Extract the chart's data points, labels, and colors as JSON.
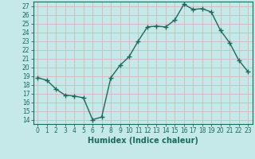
{
  "x": [
    0,
    1,
    2,
    3,
    4,
    5,
    6,
    7,
    8,
    9,
    10,
    11,
    12,
    13,
    14,
    15,
    16,
    17,
    18,
    19,
    20,
    21,
    22,
    23
  ],
  "y": [
    18.8,
    18.5,
    17.5,
    16.8,
    16.7,
    16.5,
    14.0,
    14.3,
    18.8,
    20.2,
    21.2,
    23.0,
    24.6,
    24.7,
    24.6,
    25.4,
    27.2,
    26.6,
    26.7,
    26.3,
    24.2,
    22.8,
    20.8,
    19.5
  ],
  "line_color": "#1a6b5a",
  "marker": "+",
  "marker_size": 4,
  "marker_edge_width": 1.0,
  "bg_color": "#c5e8e8",
  "grid_color": "#d4b8b8",
  "xlabel": "Humidex (Indice chaleur)",
  "xlim": [
    -0.5,
    23.5
  ],
  "ylim": [
    13.5,
    27.5
  ],
  "yticks": [
    14,
    15,
    16,
    17,
    18,
    19,
    20,
    21,
    22,
    23,
    24,
    25,
    26,
    27
  ],
  "xticks": [
    0,
    1,
    2,
    3,
    4,
    5,
    6,
    7,
    8,
    9,
    10,
    11,
    12,
    13,
    14,
    15,
    16,
    17,
    18,
    19,
    20,
    21,
    22,
    23
  ],
  "tick_label_fontsize": 5.5,
  "xlabel_fontsize": 7,
  "line_width": 1.0
}
